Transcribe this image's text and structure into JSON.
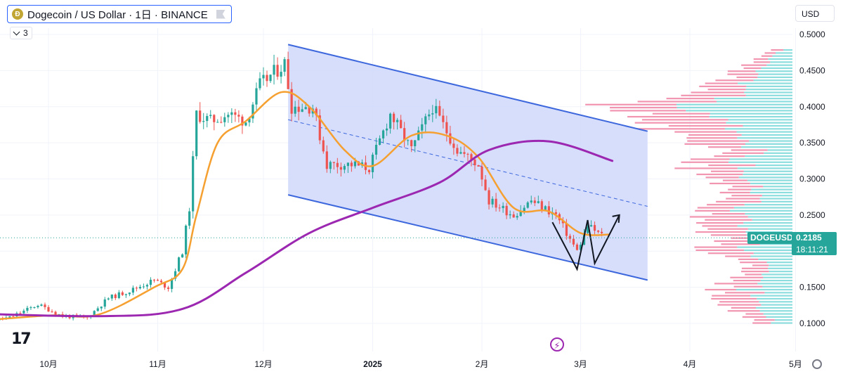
{
  "header": {
    "title": "Dogecoin / US Dollar · 1日 · BINANCE",
    "coin_icon": "dogecoin-coin-icon",
    "indicator_count": "3",
    "currency": "USD"
  },
  "labels": {
    "symbol": "DOGEUSD",
    "last_price": "0.2185",
    "countdown": "18:11:21"
  },
  "colors": {
    "up": "#26a69a",
    "down": "#ef5350",
    "ma_fast": "#f5a030",
    "ma_slow": "#9c27b0",
    "channel_fill": "#cfd8fb",
    "channel_line": "#3d67dc",
    "volume_profile_up": "#7fd9d9",
    "volume_profile_down": "#f08aa8",
    "last_price_line": "#26a69a"
  },
  "chart_data": {
    "type": "candlestick",
    "symbol": "DOGEUSD",
    "exchange": "BINANCE",
    "interval": "1日",
    "y_axis": {
      "min": 0.1,
      "max": 0.5,
      "ticks": [
        "0.1000",
        "0.1500",
        "0.2000",
        "0.2500",
        "0.3000",
        "0.3500",
        "0.4000",
        "0.4500",
        "0.5000"
      ]
    },
    "x_axis": {
      "ticks": [
        {
          "label": "10月",
          "date": "2024-10-01"
        },
        {
          "label": "11月",
          "date": "2024-11-01"
        },
        {
          "label": "12月",
          "date": "2024-12-01"
        },
        {
          "label": "2025",
          "date": "2025-01-01"
        },
        {
          "label": "2月",
          "date": "2025-02-01"
        },
        {
          "label": "3月",
          "date": "2025-03-01"
        },
        {
          "label": "4月",
          "date": "2025-04-01"
        },
        {
          "label": "5月",
          "date": "2025-05-01"
        }
      ]
    },
    "price_closes": [
      {
        "date": "2024-09-10",
        "close": 0.101
      },
      {
        "date": "2024-09-20",
        "close": 0.108
      },
      {
        "date": "2024-09-28",
        "close": 0.126
      },
      {
        "date": "2024-10-05",
        "close": 0.11
      },
      {
        "date": "2024-10-12",
        "close": 0.108
      },
      {
        "date": "2024-10-18",
        "close": 0.135
      },
      {
        "date": "2024-10-24",
        "close": 0.145
      },
      {
        "date": "2024-10-31",
        "close": 0.16
      },
      {
        "date": "2024-11-04",
        "close": 0.15
      },
      {
        "date": "2024-11-08",
        "close": 0.2
      },
      {
        "date": "2024-11-10",
        "close": 0.26
      },
      {
        "date": "2024-11-12",
        "close": 0.39
      },
      {
        "date": "2024-11-16",
        "close": 0.38
      },
      {
        "date": "2024-11-21",
        "close": 0.39
      },
      {
        "date": "2024-11-26",
        "close": 0.38
      },
      {
        "date": "2024-11-30",
        "close": 0.43
      },
      {
        "date": "2024-12-07",
        "close": 0.46
      },
      {
        "date": "2024-12-09",
        "close": 0.4
      },
      {
        "date": "2024-12-15",
        "close": 0.4
      },
      {
        "date": "2024-12-19",
        "close": 0.32
      },
      {
        "date": "2024-12-26",
        "close": 0.32
      },
      {
        "date": "2024-12-31",
        "close": 0.315
      },
      {
        "date": "2025-01-06",
        "close": 0.39
      },
      {
        "date": "2025-01-12",
        "close": 0.34
      },
      {
        "date": "2025-01-18",
        "close": 0.4
      },
      {
        "date": "2025-01-25",
        "close": 0.34
      },
      {
        "date": "2025-01-31",
        "close": 0.32
      },
      {
        "date": "2025-02-03",
        "close": 0.27
      },
      {
        "date": "2025-02-10",
        "close": 0.25
      },
      {
        "date": "2025-02-15",
        "close": 0.27
      },
      {
        "date": "2025-02-22",
        "close": 0.25
      },
      {
        "date": "2025-02-28",
        "close": 0.2
      },
      {
        "date": "2025-03-03",
        "close": 0.235
      },
      {
        "date": "2025-03-08",
        "close": 0.2185
      }
    ],
    "ma_fast": [
      {
        "date": "2024-09-10",
        "value": 0.103
      },
      {
        "date": "2024-10-01",
        "value": 0.111
      },
      {
        "date": "2024-10-15",
        "value": 0.112
      },
      {
        "date": "2024-10-31",
        "value": 0.15
      },
      {
        "date": "2024-11-08",
        "value": 0.175
      },
      {
        "date": "2024-11-12",
        "value": 0.25
      },
      {
        "date": "2024-11-18",
        "value": 0.35
      },
      {
        "date": "2024-11-26",
        "value": 0.38
      },
      {
        "date": "2024-12-06",
        "value": 0.42
      },
      {
        "date": "2024-12-14",
        "value": 0.4
      },
      {
        "date": "2024-12-24",
        "value": 0.34
      },
      {
        "date": "2025-01-01",
        "value": 0.318
      },
      {
        "date": "2025-01-12",
        "value": 0.36
      },
      {
        "date": "2025-01-22",
        "value": 0.36
      },
      {
        "date": "2025-01-31",
        "value": 0.33
      },
      {
        "date": "2025-02-10",
        "value": 0.26
      },
      {
        "date": "2025-02-20",
        "value": 0.255
      },
      {
        "date": "2025-03-01",
        "value": 0.225
      },
      {
        "date": "2025-03-09",
        "value": 0.223
      }
    ],
    "ma_slow": [
      {
        "date": "2024-09-01",
        "value": 0.115
      },
      {
        "date": "2024-10-15",
        "value": 0.11
      },
      {
        "date": "2024-11-08",
        "value": 0.12
      },
      {
        "date": "2024-11-26",
        "value": 0.17
      },
      {
        "date": "2024-12-14",
        "value": 0.225
      },
      {
        "date": "2025-01-01",
        "value": 0.26
      },
      {
        "date": "2025-01-20",
        "value": 0.295
      },
      {
        "date": "2025-02-03",
        "value": 0.34
      },
      {
        "date": "2025-02-20",
        "value": 0.352
      },
      {
        "date": "2025-03-10",
        "value": 0.325
      }
    ],
    "channel": {
      "upper": [
        {
          "date": "2024-12-08",
          "price": 0.486
        },
        {
          "date": "2025-03-20",
          "price": 0.366
        }
      ],
      "middle": [
        {
          "date": "2024-12-08",
          "price": 0.382
        },
        {
          "date": "2025-03-20",
          "price": 0.262
        }
      ],
      "lower": [
        {
          "date": "2024-12-08",
          "price": 0.278
        },
        {
          "date": "2025-03-20",
          "price": 0.16
        }
      ]
    },
    "projection_path": [
      {
        "date": "2025-02-21",
        "price": 0.24
      },
      {
        "date": "2025-02-28",
        "price": 0.175
      },
      {
        "date": "2025-03-03",
        "price": 0.243
      },
      {
        "date": "2025-03-05",
        "price": 0.183
      },
      {
        "date": "2025-03-12",
        "price": 0.25
      }
    ],
    "last_price": 0.2185,
    "volume_profile": "horizontal-volume-profile"
  }
}
